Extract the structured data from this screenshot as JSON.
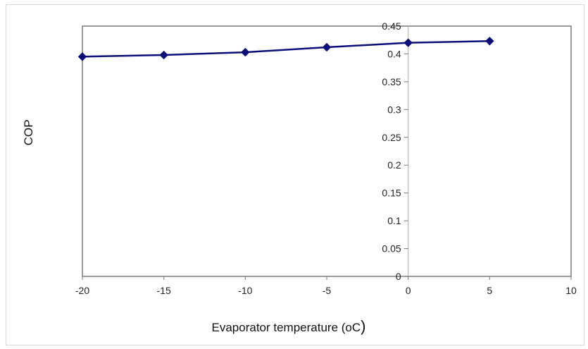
{
  "chart_data": {
    "type": "line",
    "title": "",
    "xlabel": "Evaporator temperature (oC",
    "xlabel_paren": ")",
    "ylabel": "COP",
    "xlim": [
      -20,
      10
    ],
    "ylim": [
      0,
      0.45
    ],
    "x_ticks": [
      "-20",
      "-15",
      "-10",
      "-5",
      "0",
      "5",
      "10"
    ],
    "y_ticks": [
      "0",
      "0.05",
      "0.1",
      "0.15",
      "0.2",
      "0.25",
      "0.3",
      "0.35",
      "0.4",
      "0.45"
    ],
    "grid": false,
    "legend": "none",
    "series": [
      {
        "color": "#0b0f7a",
        "marker": "diamond",
        "x": [
          -20,
          -15,
          -10,
          -5,
          0,
          5
        ],
        "y": [
          0.395,
          0.398,
          0.403,
          0.412,
          0.42,
          0.423
        ]
      }
    ]
  }
}
